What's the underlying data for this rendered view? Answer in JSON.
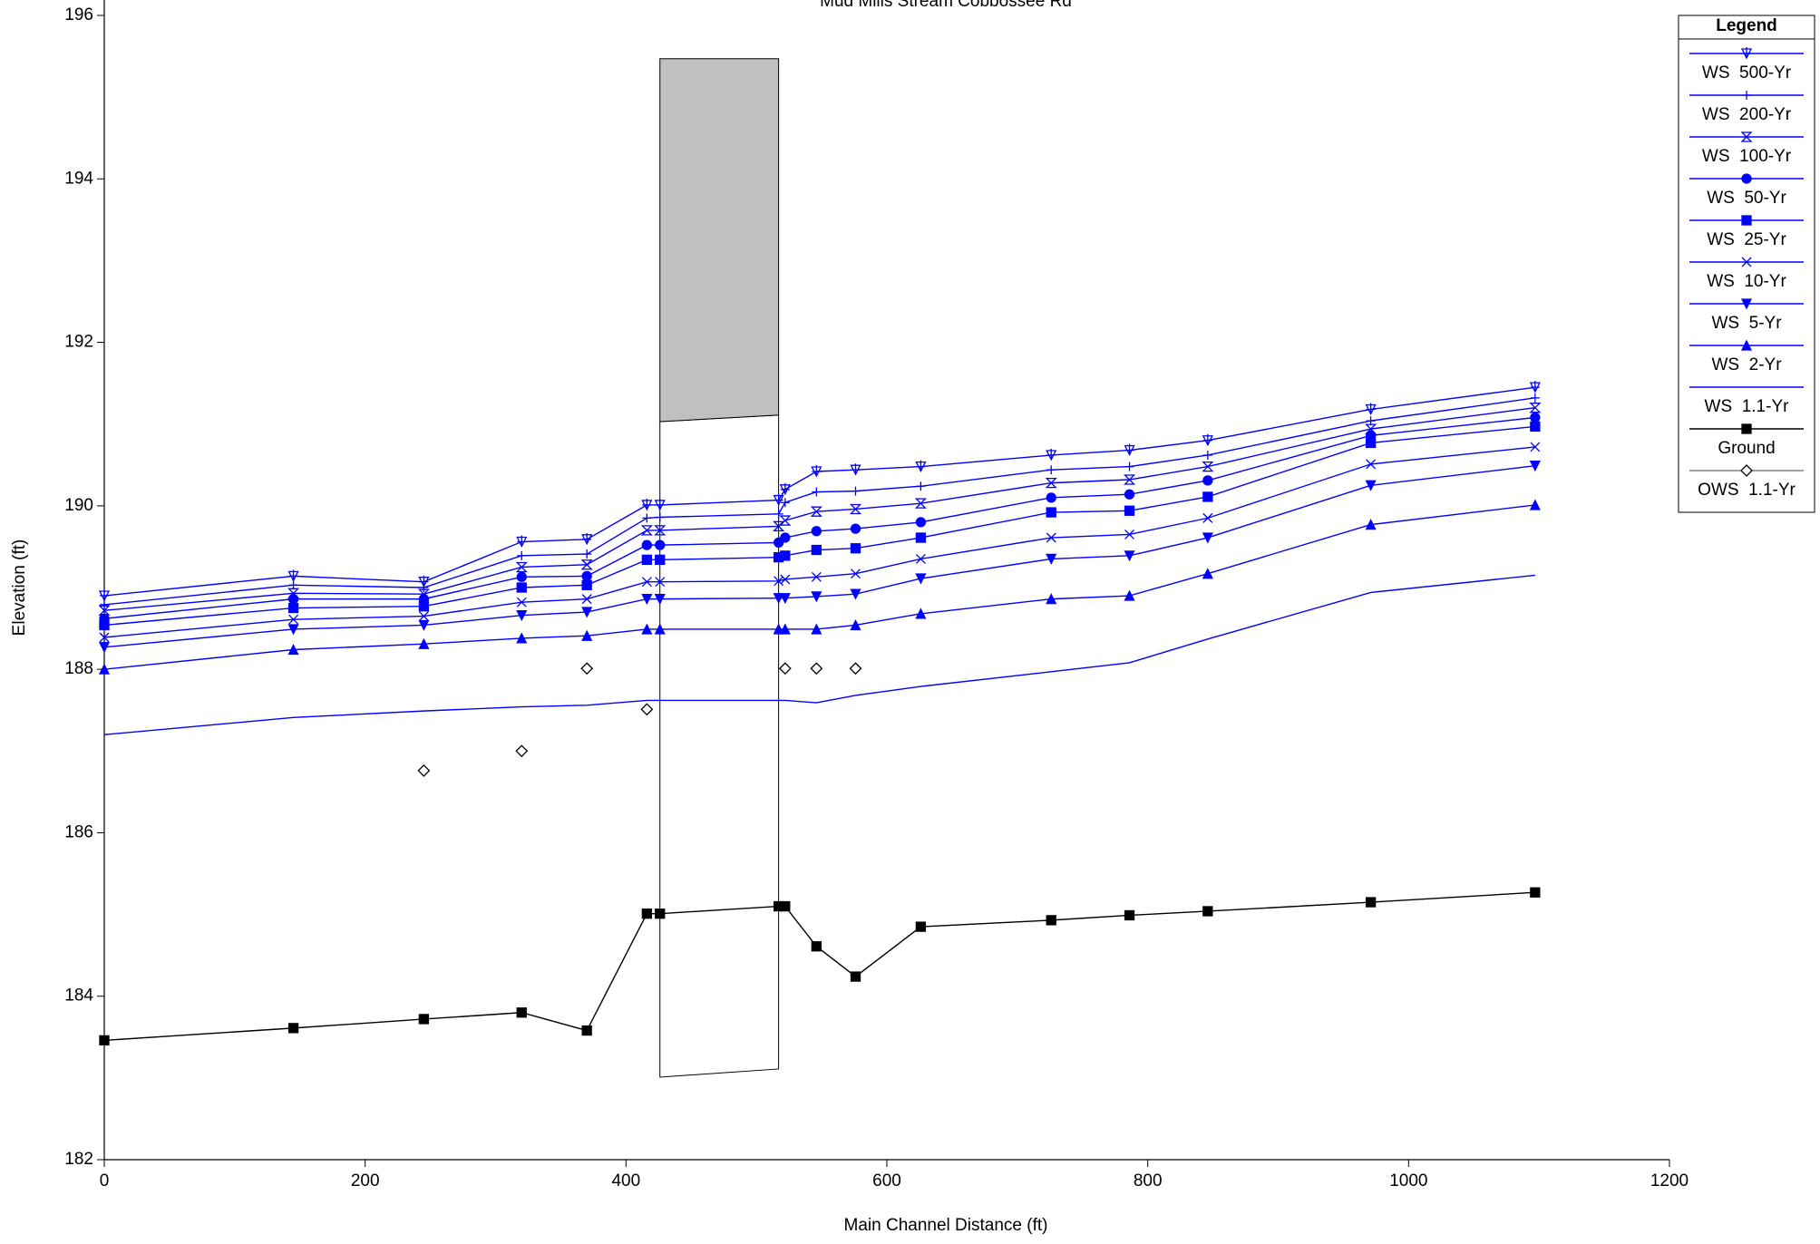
{
  "chart_data": {
    "type": "line",
    "title": "Mud Mills Stream Cobbossee Rd",
    "x_label": "Main Channel Distance (ft)",
    "y_label": "Elevation (ft)",
    "legend_title": "Legend",
    "legend_position": "right",
    "x": [
      0,
      145,
      245,
      320,
      370,
      416,
      426,
      517,
      522,
      546,
      576,
      626,
      726,
      786,
      846,
      971,
      1097
    ],
    "xlim": [
      0,
      1200
    ],
    "xticks": [
      0,
      200,
      400,
      600,
      800,
      1000,
      1200
    ],
    "ylim": [
      182,
      196
    ],
    "yticks": [
      182,
      184,
      186,
      188,
      190,
      192,
      194,
      196
    ],
    "bridge": {
      "x": [
        426,
        517
      ],
      "top": 195.47,
      "deck_bottom": [
        191.03,
        191.11
      ],
      "bottom": [
        183.01,
        183.11
      ]
    },
    "series": [
      {
        "name": "WS  500-Yr",
        "color": "#0000ff",
        "marker": "star",
        "line": true,
        "values": [
          188.9,
          189.14,
          189.07,
          189.56,
          189.59,
          190.01,
          190.01,
          190.07,
          190.2,
          190.42,
          190.44,
          190.48,
          190.62,
          190.68,
          190.8,
          191.18,
          191.45
        ]
      },
      {
        "name": "WS  200-Yr",
        "color": "#0000ff",
        "marker": "plus",
        "line": true,
        "values": [
          188.79,
          189.03,
          189.0,
          189.39,
          189.41,
          189.85,
          189.86,
          189.9,
          190.04,
          190.17,
          190.18,
          190.24,
          190.44,
          190.48,
          190.62,
          191.04,
          191.32
        ]
      },
      {
        "name": "WS  100-Yr",
        "color": "#0000ff",
        "marker": "hourglass",
        "line": true,
        "values": [
          188.72,
          188.93,
          188.92,
          189.25,
          189.28,
          189.7,
          189.7,
          189.75,
          189.82,
          189.93,
          189.96,
          190.03,
          190.28,
          190.32,
          190.48,
          190.94,
          191.2
        ]
      },
      {
        "name": "WS  50-Yr",
        "color": "#0000ff",
        "marker": "circle",
        "line": true,
        "values": [
          188.62,
          188.86,
          188.86,
          189.13,
          189.14,
          189.52,
          189.52,
          189.55,
          189.61,
          189.69,
          189.72,
          189.8,
          190.1,
          190.14,
          190.31,
          190.86,
          191.08
        ]
      },
      {
        "name": "WS  25-Yr",
        "color": "#0000ff",
        "marker": "square",
        "line": true,
        "values": [
          188.54,
          188.75,
          188.77,
          189.0,
          189.03,
          189.34,
          189.34,
          189.37,
          189.39,
          189.46,
          189.48,
          189.61,
          189.92,
          189.94,
          190.11,
          190.77,
          190.97
        ]
      },
      {
        "name": "WS  10-Yr",
        "color": "#0000ff",
        "marker": "x",
        "line": true,
        "values": [
          188.39,
          188.61,
          188.65,
          188.82,
          188.86,
          189.07,
          189.07,
          189.08,
          189.1,
          189.13,
          189.17,
          189.35,
          189.61,
          189.65,
          189.85,
          190.51,
          190.72
        ]
      },
      {
        "name": "WS  5-Yr",
        "color": "#0000ff",
        "marker": "triangle-down",
        "line": true,
        "values": [
          188.27,
          188.49,
          188.54,
          188.66,
          188.7,
          188.86,
          188.86,
          188.87,
          188.87,
          188.89,
          188.92,
          189.11,
          189.35,
          189.39,
          189.61,
          190.25,
          190.49
        ]
      },
      {
        "name": "WS  2-Yr",
        "color": "#0000ff",
        "marker": "triangle-up",
        "line": true,
        "values": [
          188.0,
          188.24,
          188.31,
          188.38,
          188.41,
          188.49,
          188.49,
          188.49,
          188.49,
          188.49,
          188.54,
          188.68,
          188.86,
          188.9,
          189.17,
          189.77,
          190.01
        ]
      },
      {
        "name": "WS  1.1-Yr",
        "color": "#0000ff",
        "marker": "none",
        "line": true,
        "values": [
          187.2,
          187.41,
          187.49,
          187.54,
          187.56,
          187.62,
          187.62,
          187.62,
          187.62,
          187.59,
          187.68,
          187.79,
          187.97,
          188.08,
          188.37,
          188.94,
          189.15
        ]
      },
      {
        "name": "Ground",
        "color": "#000000",
        "marker": "square",
        "line": true,
        "values": [
          183.46,
          183.61,
          183.72,
          183.8,
          183.58,
          185.01,
          185.01,
          185.1,
          185.1,
          184.61,
          184.24,
          184.85,
          184.93,
          184.99,
          185.04,
          185.15,
          185.27
        ]
      },
      {
        "name": "OWS  1.1-Yr",
        "color": "#000000",
        "marker": "diamond",
        "line": false,
        "values": [
          null,
          null,
          186.76,
          187.0,
          188.01,
          187.51,
          null,
          null,
          188.01,
          188.01,
          188.01,
          null,
          null,
          null,
          null,
          null,
          null
        ]
      }
    ]
  }
}
